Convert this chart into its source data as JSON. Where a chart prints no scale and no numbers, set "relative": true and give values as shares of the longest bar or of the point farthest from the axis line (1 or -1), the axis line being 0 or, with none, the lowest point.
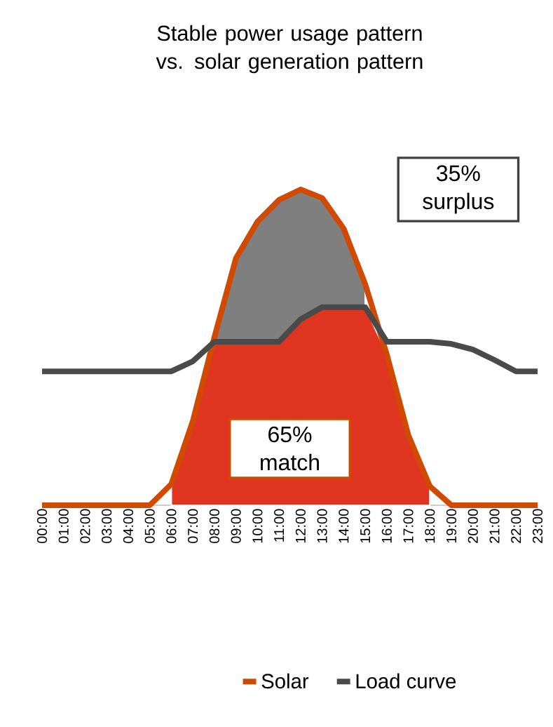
{
  "chart_data": {
    "type": "line",
    "title": "Stable power usage pattern vs. solar generation pattern",
    "relative": true,
    "categories": [
      "00:00",
      "01:00",
      "02:00",
      "03:00",
      "04:00",
      "05:00",
      "06:00",
      "07:00",
      "08:00",
      "09:00",
      "10:00",
      "11:00",
      "12:00",
      "13:00",
      "14:00",
      "15:00",
      "16:00",
      "17:00",
      "18:00",
      "19:00",
      "20:00",
      "21:00",
      "22:00",
      "23:00"
    ],
    "series": [
      {
        "type": "area",
        "color": "#7f7f7f",
        "values": [
          null,
          null,
          null,
          null,
          null,
          null,
          null,
          null,
          0.533,
          0.782,
          0.898,
          0.967,
          1,
          0.973,
          0.876,
          0.7,
          null,
          null,
          null,
          null,
          null,
          null,
          null,
          null
        ]
      },
      {
        "type": "area",
        "color": "#e03520",
        "values": [
          null,
          null,
          null,
          null,
          null,
          null,
          0.067,
          0.267,
          0.518,
          0.518,
          0.518,
          0.518,
          0.589,
          0.627,
          0.627,
          0.627,
          0.478,
          0.222,
          0.06,
          null,
          null,
          null,
          null,
          null
        ]
      },
      {
        "name": "Solar",
        "color": "#d04a02",
        "values": [
          0,
          0,
          0,
          0,
          0,
          0,
          0.067,
          0.267,
          0.533,
          0.782,
          0.898,
          0.967,
          1,
          0.973,
          0.876,
          0.7,
          0.478,
          0.222,
          0.06,
          0,
          0,
          0,
          0,
          0
        ]
      },
      {
        "name": "Load curve",
        "color": "#4a4a4a",
        "values": [
          0.424,
          0.424,
          0.424,
          0.424,
          0.424,
          0.424,
          0.424,
          0.456,
          0.518,
          0.518,
          0.518,
          0.518,
          0.589,
          0.627,
          0.627,
          0.627,
          0.518,
          0.518,
          0.518,
          0.511,
          0.493,
          0.46,
          0.424,
          0.424
        ]
      }
    ],
    "annotations": [
      "35% surplus",
      "65% match"
    ],
    "legend": "bottom",
    "grid": false
  }
}
